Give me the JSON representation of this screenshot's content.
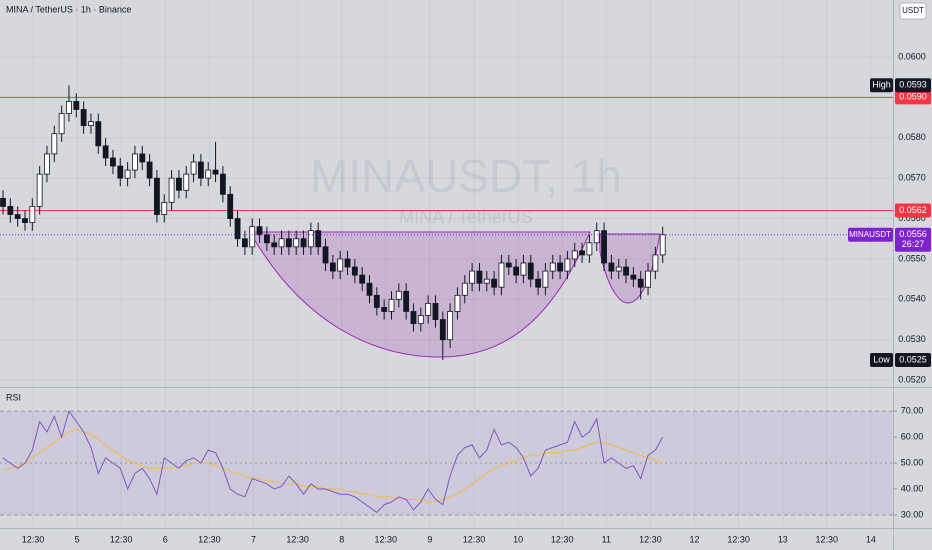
{
  "chart_data": {
    "type": "candlestick",
    "title": "MINA / TetherUS · 1h · Binance",
    "watermark": "MINAUSDT, 1h",
    "watermark_subtitle": "MINA / TetherUS",
    "currency": "USDT",
    "x_labels": [
      "12:30",
      "5",
      "12:30",
      "6",
      "12:30",
      "7",
      "12:30",
      "8",
      "12:30",
      "9",
      "12:30",
      "10",
      "12:30",
      "11",
      "12:30",
      "12",
      "12:30",
      "13",
      "12:30",
      "14"
    ],
    "open": [
      0.0565,
      0.0563,
      0.0561,
      0.056,
      0.0559,
      0.0563,
      0.0571,
      0.0576,
      0.0581,
      0.0586,
      0.0589,
      0.0587,
      0.0583,
      0.0584,
      0.0578,
      0.0575,
      0.0573,
      0.057,
      0.0572,
      0.0576,
      0.0574,
      0.057,
      0.0561,
      0.0564,
      0.057,
      0.0567,
      0.0571,
      0.0574,
      0.057,
      0.0572,
      0.0571,
      0.0566,
      0.056,
      0.0555,
      0.0553,
      0.0558,
      0.0556,
      0.0554,
      0.0553,
      0.0555,
      0.0553,
      0.0555,
      0.0553,
      0.0557,
      0.0553,
      0.0549,
      0.0547,
      0.055,
      0.0548,
      0.0546,
      0.0544,
      0.0541,
      0.0538,
      0.0537,
      0.054,
      0.0542,
      0.0537,
      0.0534,
      0.0536,
      0.0539,
      0.0535,
      0.053,
      0.0537,
      0.0541,
      0.0544,
      0.0547,
      0.0544,
      0.0545,
      0.0543,
      0.0549,
      0.0548,
      0.0546,
      0.0549,
      0.0545,
      0.0543,
      0.0547,
      0.0549,
      0.0547,
      0.055,
      0.0552,
      0.0551,
      0.0554,
      0.0557,
      0.0549,
      0.0547,
      0.0548,
      0.0546,
      0.0545,
      0.0543,
      0.0547,
      0.0551
    ],
    "high": [
      0.0567,
      0.0565,
      0.0563,
      0.0562,
      0.0565,
      0.0573,
      0.0578,
      0.0583,
      0.0588,
      0.0593,
      0.0591,
      0.0589,
      0.0586,
      0.0586,
      0.058,
      0.0577,
      0.0575,
      0.0574,
      0.0578,
      0.0578,
      0.0576,
      0.0572,
      0.0566,
      0.0572,
      0.0572,
      0.0573,
      0.0576,
      0.0576,
      0.0574,
      0.0579,
      0.0573,
      0.0568,
      0.0562,
      0.0557,
      0.056,
      0.056,
      0.0558,
      0.0556,
      0.0557,
      0.0557,
      0.0557,
      0.0557,
      0.0559,
      0.0559,
      0.0555,
      0.0551,
      0.0552,
      0.0552,
      0.055,
      0.0548,
      0.0546,
      0.0543,
      0.054,
      0.0542,
      0.0544,
      0.0544,
      0.0539,
      0.0538,
      0.0541,
      0.0541,
      0.0537,
      0.0539,
      0.0543,
      0.0546,
      0.0549,
      0.0549,
      0.0547,
      0.0547,
      0.0551,
      0.0551,
      0.055,
      0.0551,
      0.0551,
      0.0547,
      0.0549,
      0.0551,
      0.0551,
      0.0552,
      0.0554,
      0.0554,
      0.0556,
      0.0559,
      0.0559,
      0.0551,
      0.055,
      0.055,
      0.0548,
      0.0547,
      0.0549,
      0.0553,
      0.0558
    ],
    "low": [
      0.0561,
      0.0559,
      0.0558,
      0.0557,
      0.0557,
      0.0561,
      0.0569,
      0.0574,
      0.0579,
      0.0584,
      0.0585,
      0.0581,
      0.0581,
      0.0576,
      0.0573,
      0.0571,
      0.0568,
      0.0568,
      0.057,
      0.0572,
      0.0568,
      0.0559,
      0.0559,
      0.0562,
      0.0565,
      0.0565,
      0.0569,
      0.0568,
      0.0568,
      0.0569,
      0.0564,
      0.0558,
      0.0553,
      0.0551,
      0.0551,
      0.0554,
      0.0552,
      0.0551,
      0.0551,
      0.0551,
      0.0551,
      0.0551,
      0.0551,
      0.0551,
      0.0547,
      0.0545,
      0.0545,
      0.0546,
      0.0544,
      0.0542,
      0.0539,
      0.0536,
      0.0535,
      0.0535,
      0.0538,
      0.0535,
      0.0532,
      0.0532,
      0.0534,
      0.0533,
      0.0525,
      0.0528,
      0.0535,
      0.0539,
      0.0542,
      0.0542,
      0.0542,
      0.0541,
      0.0541,
      0.0546,
      0.0544,
      0.0544,
      0.0543,
      0.0541,
      0.0541,
      0.0545,
      0.0545,
      0.0545,
      0.0548,
      0.0549,
      0.0549,
      0.0552,
      0.0547,
      0.0545,
      0.0545,
      0.0544,
      0.0543,
      0.054,
      0.0541,
      0.0545,
      0.0549
    ],
    "close": [
      0.0563,
      0.0561,
      0.056,
      0.0559,
      0.0563,
      0.0571,
      0.0576,
      0.0581,
      0.0586,
      0.0589,
      0.0587,
      0.0583,
      0.0584,
      0.0578,
      0.0575,
      0.0573,
      0.057,
      0.0572,
      0.0576,
      0.0574,
      0.057,
      0.0561,
      0.0564,
      0.057,
      0.0567,
      0.0571,
      0.0574,
      0.057,
      0.0572,
      0.0571,
      0.0566,
      0.056,
      0.0555,
      0.0553,
      0.0558,
      0.0556,
      0.0554,
      0.0553,
      0.0555,
      0.0553,
      0.0555,
      0.0553,
      0.0557,
      0.0553,
      0.0549,
      0.0547,
      0.055,
      0.0548,
      0.0546,
      0.0544,
      0.0541,
      0.0538,
      0.0537,
      0.054,
      0.0542,
      0.0537,
      0.0534,
      0.0536,
      0.0539,
      0.0535,
      0.053,
      0.0537,
      0.0541,
      0.0544,
      0.0547,
      0.0544,
      0.0545,
      0.0543,
      0.0549,
      0.0548,
      0.0546,
      0.0549,
      0.0545,
      0.0543,
      0.0547,
      0.0549,
      0.0547,
      0.055,
      0.0552,
      0.0551,
      0.0554,
      0.0557,
      0.0549,
      0.0547,
      0.0548,
      0.0546,
      0.0545,
      0.0543,
      0.0547,
      0.0551,
      0.0556
    ],
    "up_color": "#ffffff",
    "down_color": "#131722",
    "ylim": [
      0.05188,
      0.06141
    ],
    "yticks": [
      {
        "value": 0.052,
        "label": "0.0520"
      },
      {
        "value": 0.053,
        "label": "0.0530"
      },
      {
        "value": 0.054,
        "label": "0.0540"
      },
      {
        "value": 0.055,
        "label": "0.0550"
      },
      {
        "value": 0.056,
        "label": "0.0560"
      },
      {
        "value": 0.057,
        "label": "0.0570"
      },
      {
        "value": 0.058,
        "label": "0.0580"
      },
      {
        "value": 0.06,
        "label": "0.0600"
      }
    ],
    "hlines": [
      {
        "value": 0.059,
        "label": "0.0590",
        "color": "#f23645"
      },
      {
        "value": 0.0562,
        "label": "0.0562",
        "color": "#f23645"
      }
    ],
    "high_marker": {
      "name": "High",
      "value": 0.0593,
      "label": "0.0593"
    },
    "low_marker": {
      "name": "Low",
      "value": 0.0525,
      "label": "0.0525"
    },
    "last_price": {
      "name": "MINAUSDT",
      "value": 0.0556,
      "label": "0.0556",
      "countdown": "26:27",
      "color": "#7e22ce"
    },
    "rsi": {
      "title": "RSI",
      "color": "#7e57c2",
      "ma_color": "#f5b942",
      "values": [
        52,
        50,
        48,
        50,
        55,
        66,
        62,
        68,
        60,
        70,
        66,
        62,
        56,
        46,
        52,
        50,
        48,
        40,
        46,
        48,
        44,
        38,
        52,
        50,
        48,
        51,
        52,
        50,
        55,
        54,
        48,
        40,
        38,
        37,
        44,
        43,
        42,
        40,
        41,
        45,
        42,
        38,
        42,
        40,
        40,
        39,
        38,
        38,
        37,
        35,
        33,
        31,
        34,
        35,
        37,
        36,
        32,
        35,
        40,
        36,
        34,
        45,
        53,
        56,
        57,
        52,
        55,
        63,
        57,
        58,
        56,
        52,
        45,
        48,
        55,
        56,
        57,
        58,
        66,
        60,
        62,
        67,
        50,
        52,
        50,
        48,
        49,
        44,
        53,
        55,
        60
      ],
      "ma": [
        47,
        48,
        49,
        50,
        52,
        54,
        56,
        58,
        60,
        62,
        63,
        62,
        61,
        59,
        57,
        55,
        53,
        51,
        50,
        49,
        48,
        48,
        48,
        48,
        49,
        49,
        50,
        50,
        50,
        49,
        48,
        47,
        46,
        45,
        44,
        44,
        43,
        43,
        42,
        42,
        42,
        41,
        41,
        41,
        40,
        40,
        40,
        39,
        39,
        38,
        38,
        37,
        37,
        37,
        36,
        36,
        36,
        36,
        35,
        35,
        36,
        37,
        38,
        40,
        42,
        44,
        46,
        48,
        49,
        50,
        51,
        52,
        53,
        53,
        54,
        54,
        54,
        55,
        55,
        56,
        57,
        58,
        58,
        57,
        56,
        55,
        54,
        53,
        52,
        51,
        50
      ],
      "ylim": [
        25,
        76.2
      ],
      "yticks": [
        {
          "value": 30,
          "label": "30.00"
        },
        {
          "value": 40,
          "label": "40.00"
        },
        {
          "value": 50,
          "label": "50.00"
        },
        {
          "value": 60,
          "label": "60.00"
        },
        {
          "value": 70,
          "label": "70.00"
        }
      ],
      "band": [
        30,
        70
      ],
      "midline": 50
    }
  }
}
